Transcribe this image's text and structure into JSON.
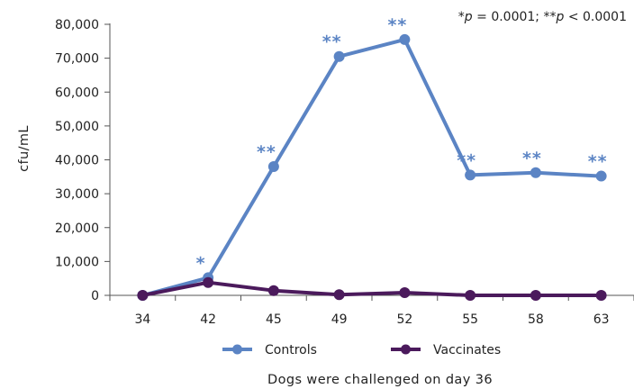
{
  "chart_data": {
    "type": "line",
    "categories": [
      "34",
      "42",
      "45",
      "49",
      "52",
      "55",
      "58",
      "63"
    ],
    "series": [
      {
        "name": "Controls",
        "color": "#5b84c4",
        "values": [
          0,
          5200,
          38000,
          70500,
          75500,
          35500,
          36200,
          35200
        ],
        "significance": [
          "",
          "*",
          "**",
          "**",
          "**",
          "**",
          "**",
          "**"
        ]
      },
      {
        "name": "Vaccinates",
        "color": "#4b1a5c",
        "values": [
          0,
          3800,
          1400,
          200,
          800,
          0,
          0,
          0
        ]
      }
    ],
    "ylabel": "cfu/mL",
    "xlabel": "Dogs were challenged on day 36",
    "ylim": [
      0,
      80000
    ],
    "yticks": [
      "0",
      "10,000",
      "20,000",
      "30,000",
      "40,000",
      "50,000",
      "60,000",
      "70,000",
      "80,000"
    ],
    "yticks_values": [
      0,
      10000,
      20000,
      30000,
      40000,
      50000,
      60000,
      70000,
      80000
    ],
    "annotation": {
      "p1_prefix": "*",
      "p1_var": "p",
      "p1_rest": " = 0.0001; **",
      "p2_var": "p",
      "p2_rest": " < 0.0001"
    },
    "legend_position": "bottom",
    "grid": false
  }
}
